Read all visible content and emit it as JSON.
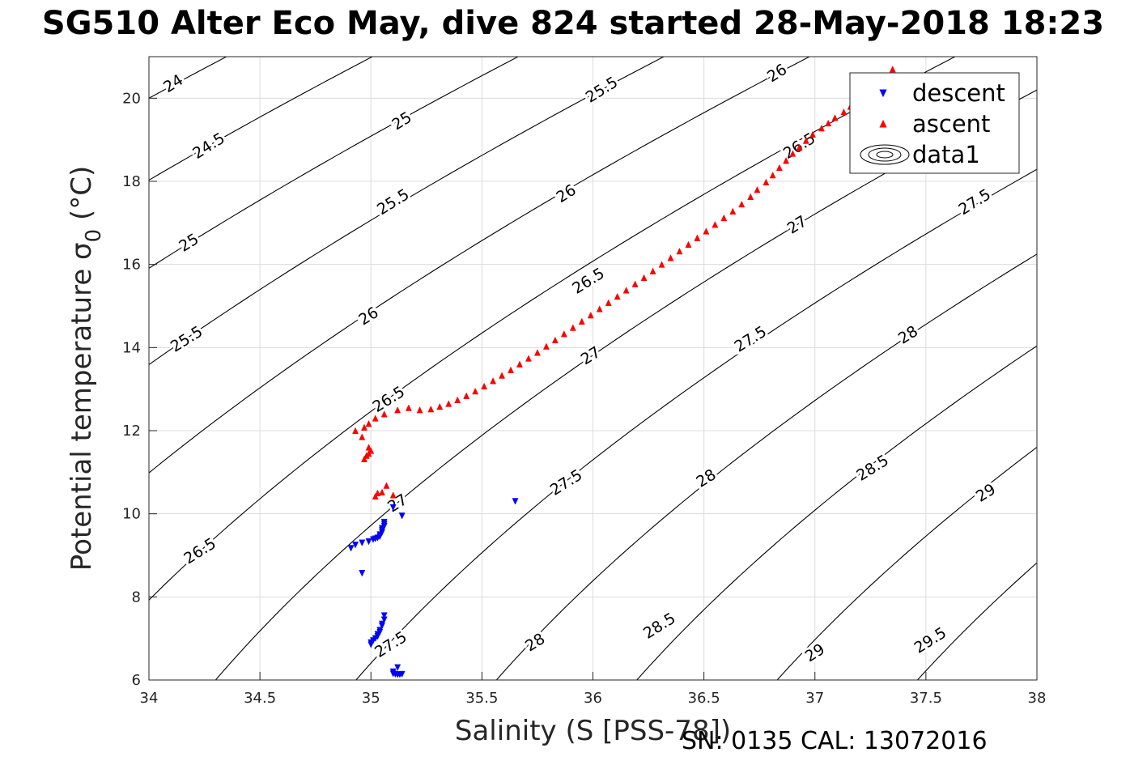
{
  "title": "SG510 Alter Eco May, dive 824 started 28-May-2018 18:23",
  "footer": "SN: 0135  CAL: 13072016",
  "chart_data": {
    "type": "scatter",
    "xlabel": "Salinity (S [PSS-78])",
    "ylabel": "Potential temperature σ",
    "ylabel_subscript": "0",
    "ylabel_unit": "(°C)",
    "xlim": [
      34,
      38
    ],
    "ylim": [
      6,
      21
    ],
    "xticks": [
      "34",
      "34.5",
      "35",
      "35.5",
      "36",
      "36.5",
      "37",
      "37.5",
      "38"
    ],
    "yticks": [
      "6",
      "8",
      "10",
      "12",
      "14",
      "16",
      "18",
      "20"
    ],
    "grid": true,
    "legend": {
      "placement": "top-right",
      "entries": [
        {
          "label": "descent",
          "marker": "triangle-down",
          "color": "#0000ff"
        },
        {
          "label": "ascent",
          "marker": "triangle-up",
          "color": "#ff0000"
        },
        {
          "label": "data1",
          "marker": "contour",
          "color": "#000000"
        }
      ]
    },
    "contours": {
      "levels": [
        24,
        24.5,
        25,
        25.5,
        26,
        26.5,
        27,
        27.5,
        28,
        28.5,
        29,
        29.5
      ],
      "labels": [
        {
          "text": "24",
          "s": 34.11,
          "t": 20.35
        },
        {
          "text": "24.5",
          "s": 34.27,
          "t": 18.85
        },
        {
          "text": "25",
          "s": 34.18,
          "t": 16.52
        },
        {
          "text": "25.5",
          "s": 34.17,
          "t": 14.2
        },
        {
          "text": "26.5",
          "s": 34.23,
          "t": 9.1
        },
        {
          "text": "25",
          "s": 35.14,
          "t": 19.45
        },
        {
          "text": "25.5",
          "s": 35.1,
          "t": 17.5
        },
        {
          "text": "26",
          "s": 34.99,
          "t": 14.75
        },
        {
          "text": "26.5",
          "s": 35.08,
          "t": 12.75
        },
        {
          "text": "27",
          "s": 35.12,
          "t": 10.25
        },
        {
          "text": "27.5",
          "s": 35.09,
          "t": 6.85
        },
        {
          "text": "25.5",
          "s": 36.04,
          "t": 20.2
        },
        {
          "text": "26",
          "s": 35.88,
          "t": 17.7
        },
        {
          "text": "26.5",
          "s": 35.98,
          "t": 15.6
        },
        {
          "text": "27",
          "s": 35.99,
          "t": 13.8
        },
        {
          "text": "27.5",
          "s": 35.88,
          "t": 10.75
        },
        {
          "text": "28",
          "s": 35.74,
          "t": 6.9
        },
        {
          "text": "26",
          "s": 36.83,
          "t": 20.6
        },
        {
          "text": "26.5",
          "s": 36.93,
          "t": 18.85
        },
        {
          "text": "27",
          "s": 36.92,
          "t": 16.95
        },
        {
          "text": "27.5",
          "s": 36.71,
          "t": 14.2
        },
        {
          "text": "28",
          "s": 36.51,
          "t": 10.85
        },
        {
          "text": "28.5",
          "s": 36.3,
          "t": 7.3
        },
        {
          "text": "27.5",
          "s": 37.72,
          "t": 17.5
        },
        {
          "text": "28",
          "s": 37.42,
          "t": 14.3
        },
        {
          "text": "28.5",
          "s": 37.26,
          "t": 11.1
        },
        {
          "text": "29",
          "s": 37.0,
          "t": 6.65
        },
        {
          "text": "29",
          "s": 37.77,
          "t": 10.5
        },
        {
          "text": "29.5",
          "s": 37.52,
          "t": 6.95
        }
      ]
    },
    "series": [
      {
        "name": "descent",
        "color": "#0000ff",
        "marker": "triangle-down",
        "points": [
          [
            34.91,
            9.17
          ],
          [
            34.93,
            9.25
          ],
          [
            34.96,
            9.3
          ],
          [
            34.99,
            9.33
          ],
          [
            35.01,
            9.38
          ],
          [
            35.02,
            9.4
          ],
          [
            35.03,
            9.42
          ],
          [
            35.04,
            9.45
          ],
          [
            35.04,
            9.5
          ],
          [
            35.05,
            9.55
          ],
          [
            35.05,
            9.6
          ],
          [
            35.05,
            9.65
          ],
          [
            35.06,
            9.7
          ],
          [
            35.06,
            9.75
          ],
          [
            35.06,
            9.8
          ],
          [
            35.1,
            10.15
          ],
          [
            35.14,
            9.95
          ],
          [
            35.65,
            10.3
          ],
          [
            34.96,
            8.57
          ],
          [
            35.06,
            7.55
          ],
          [
            35.06,
            7.45
          ],
          [
            35.05,
            7.35
          ],
          [
            35.05,
            7.3
          ],
          [
            35.04,
            7.2
          ],
          [
            35.04,
            7.15
          ],
          [
            35.03,
            7.1
          ],
          [
            35.03,
            7.05
          ],
          [
            35.02,
            7.0
          ],
          [
            35.01,
            6.95
          ],
          [
            35.0,
            6.9
          ],
          [
            35.0,
            6.85
          ],
          [
            35.12,
            6.3
          ],
          [
            35.1,
            6.15
          ],
          [
            35.11,
            6.14
          ],
          [
            35.12,
            6.13
          ],
          [
            35.13,
            6.13
          ],
          [
            35.14,
            6.14
          ],
          [
            35.1,
            6.2
          ]
        ]
      },
      {
        "name": "ascent",
        "color": "#ff0000",
        "marker": "triangle-up",
        "points": [
          [
            37.35,
            20.7
          ],
          [
            37.32,
            20.52
          ],
          [
            37.26,
            20.3
          ],
          [
            37.23,
            20.15
          ],
          [
            37.19,
            19.98
          ],
          [
            37.16,
            19.8
          ],
          [
            37.13,
            19.67
          ],
          [
            37.09,
            19.53
          ],
          [
            37.06,
            19.4
          ],
          [
            37.03,
            19.28
          ],
          [
            36.99,
            19.13
          ],
          [
            36.96,
            18.98
          ],
          [
            36.93,
            18.82
          ],
          [
            36.9,
            18.67
          ],
          [
            36.87,
            18.5
          ],
          [
            36.84,
            18.33
          ],
          [
            36.81,
            18.15
          ],
          [
            36.78,
            17.98
          ],
          [
            36.74,
            17.8
          ],
          [
            36.71,
            17.63
          ],
          [
            36.67,
            17.45
          ],
          [
            36.63,
            17.28
          ],
          [
            36.59,
            17.12
          ],
          [
            36.55,
            16.96
          ],
          [
            36.51,
            16.8
          ],
          [
            36.47,
            16.64
          ],
          [
            36.43,
            16.48
          ],
          [
            36.39,
            16.32
          ],
          [
            36.35,
            16.16
          ],
          [
            36.31,
            16.0
          ],
          [
            36.27,
            15.84
          ],
          [
            36.23,
            15.68
          ],
          [
            36.19,
            15.53
          ],
          [
            36.15,
            15.38
          ],
          [
            36.11,
            15.23
          ],
          [
            36.07,
            15.08
          ],
          [
            36.03,
            14.93
          ],
          [
            35.99,
            14.78
          ],
          [
            35.95,
            14.63
          ],
          [
            35.91,
            14.48
          ],
          [
            35.87,
            14.33
          ],
          [
            35.83,
            14.18
          ],
          [
            35.79,
            14.03
          ],
          [
            35.75,
            13.88
          ],
          [
            35.71,
            13.74
          ],
          [
            35.67,
            13.6
          ],
          [
            35.63,
            13.46
          ],
          [
            35.59,
            13.33
          ],
          [
            35.55,
            13.2
          ],
          [
            35.51,
            13.07
          ],
          [
            35.47,
            12.95
          ],
          [
            35.43,
            12.84
          ],
          [
            35.39,
            12.74
          ],
          [
            35.35,
            12.65
          ],
          [
            35.31,
            12.58
          ],
          [
            35.27,
            12.52
          ],
          [
            35.22,
            12.5
          ],
          [
            35.17,
            12.55
          ],
          [
            35.12,
            12.5
          ],
          [
            35.06,
            12.4
          ],
          [
            35.02,
            12.3
          ],
          [
            34.99,
            12.17
          ],
          [
            34.97,
            12.08
          ],
          [
            34.93,
            12.0
          ],
          [
            34.96,
            11.85
          ],
          [
            34.99,
            11.6
          ],
          [
            35.0,
            11.52
          ],
          [
            34.99,
            11.45
          ],
          [
            34.98,
            11.4
          ],
          [
            34.97,
            11.32
          ],
          [
            35.03,
            10.5
          ],
          [
            35.05,
            10.52
          ],
          [
            35.07,
            10.68
          ],
          [
            35.1,
            10.45
          ],
          [
            35.02,
            10.42
          ]
        ]
      }
    ]
  }
}
